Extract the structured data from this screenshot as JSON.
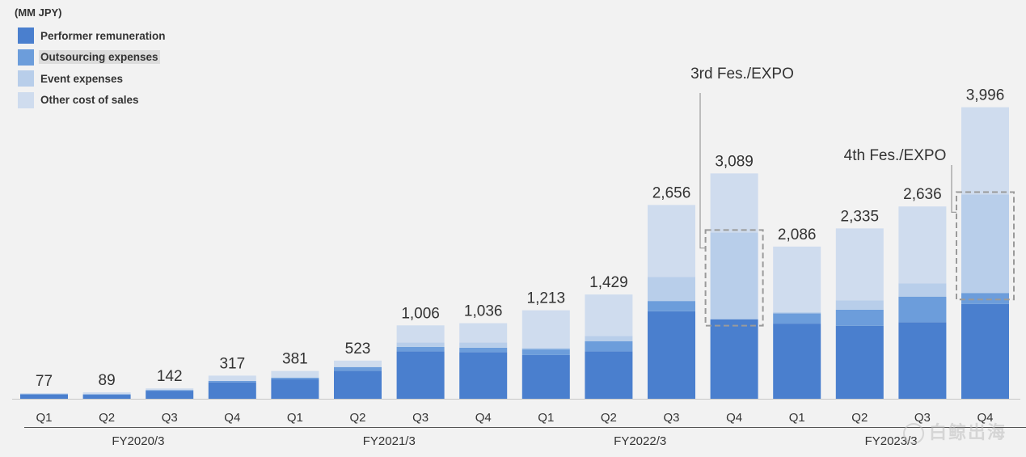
{
  "unit_label": "(MM JPY)",
  "legend": [
    {
      "name": "Performer remuneration",
      "color": "#4a7fce",
      "highlight": false
    },
    {
      "name": "Outsourcing expenses",
      "color": "#6c9ddb",
      "highlight": true
    },
    {
      "name": "Event expenses",
      "color": "#b8ceea",
      "highlight": false
    },
    {
      "name": "Other cost of sales",
      "color": "#cfdcee",
      "highlight": false
    }
  ],
  "watermark": "白鲸出海",
  "chart_data": {
    "type": "bar",
    "stacked": true,
    "categories": [
      "Q1",
      "Q2",
      "Q3",
      "Q4",
      "Q1",
      "Q2",
      "Q3",
      "Q4",
      "Q1",
      "Q2",
      "Q3",
      "Q4",
      "Q1",
      "Q2",
      "Q3",
      "Q4"
    ],
    "groups": [
      {
        "label": "FY2020/3",
        "start": 0,
        "end": 3
      },
      {
        "label": "FY2021/3",
        "start": 4,
        "end": 7
      },
      {
        "label": "FY2022/3",
        "start": 8,
        "end": 11
      },
      {
        "label": "FY2023/3",
        "start": 12,
        "end": 15
      }
    ],
    "totals": [
      77,
      89,
      142,
      317,
      381,
      523,
      1006,
      1036,
      1213,
      1429,
      2656,
      3089,
      2086,
      2335,
      2636,
      3996
    ],
    "total_labels": [
      "77",
      "89",
      "142",
      "317",
      "381",
      "523",
      "1,006",
      "1,036",
      "1,213",
      "1,429",
      "2,656",
      "3,089",
      "2,086",
      "2,335",
      "2,636",
      "3,996"
    ],
    "series": [
      {
        "name": "Performer remuneration",
        "color": "#4a7fce",
        "values": [
          60,
          55,
          110,
          225,
          270,
          385,
          650,
          640,
          600,
          650,
          1200,
          1090,
          1030,
          1000,
          1050,
          1300
        ]
      },
      {
        "name": "Outsourcing expenses",
        "color": "#6c9ddb",
        "values": [
          5,
          8,
          10,
          20,
          20,
          50,
          60,
          60,
          80,
          140,
          140,
          0,
          140,
          220,
          350,
          150
        ]
      },
      {
        "name": "Event expenses",
        "color": "#b8ceea",
        "values": [
          0,
          0,
          0,
          0,
          0,
          0,
          60,
          70,
          20,
          70,
          330,
          1190,
          20,
          130,
          180,
          1350
        ]
      },
      {
        "name": "Other cost of sales",
        "color": "#cfdcee",
        "values": [
          12,
          26,
          22,
          72,
          91,
          88,
          236,
          266,
          513,
          569,
          986,
          809,
          896,
          985,
          1056,
          1196
        ]
      }
    ],
    "ylim": [
      0,
      4200
    ],
    "annotations": [
      {
        "text": "3rd Fes./EXPO",
        "bar_index": 11
      },
      {
        "text": "4th Fes./EXPO",
        "bar_index": 15
      }
    ]
  }
}
